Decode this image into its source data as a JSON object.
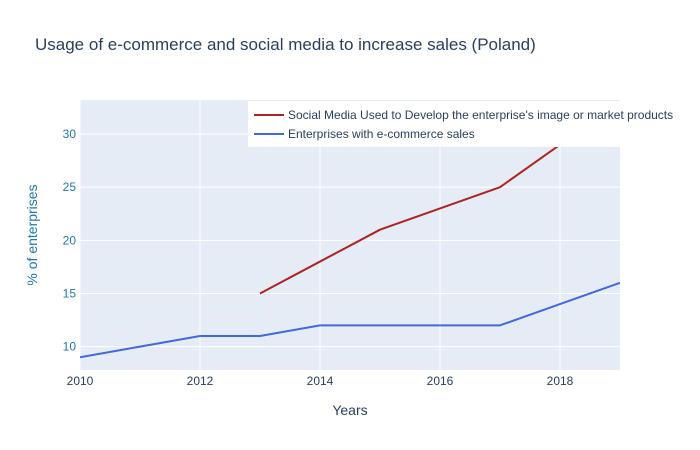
{
  "chart_data": {
    "type": "line",
    "title": "Usage of e-commerce and social media to increase sales (Poland)",
    "xlabel": "Years",
    "ylabel": "% of enterprises",
    "xlim": [
      2010,
      2019
    ],
    "ylim": [
      7.8,
      33.2
    ],
    "x_ticks": [
      2010,
      2012,
      2014,
      2016,
      2018
    ],
    "y_ticks": [
      10,
      15,
      20,
      25,
      30
    ],
    "grid": true,
    "legend_position": "top-right",
    "plot_background": "#e5ecf6",
    "series": [
      {
        "name": "Social Media Used to Develop the enterprise's image or market products",
        "color": "#b22222",
        "x": [
          2013,
          2014,
          2015,
          2016,
          2017,
          2018,
          2019
        ],
        "y": [
          15,
          18,
          21,
          23,
          25,
          29,
          33
        ]
      },
      {
        "name": "Enterprises with e-commerce sales",
        "color": "#4169e1",
        "x": [
          2010,
          2011,
          2012,
          2013,
          2014,
          2015,
          2016,
          2017,
          2018,
          2019
        ],
        "y": [
          9,
          10,
          11,
          11,
          12,
          12,
          12,
          12,
          14,
          16
        ]
      }
    ]
  }
}
